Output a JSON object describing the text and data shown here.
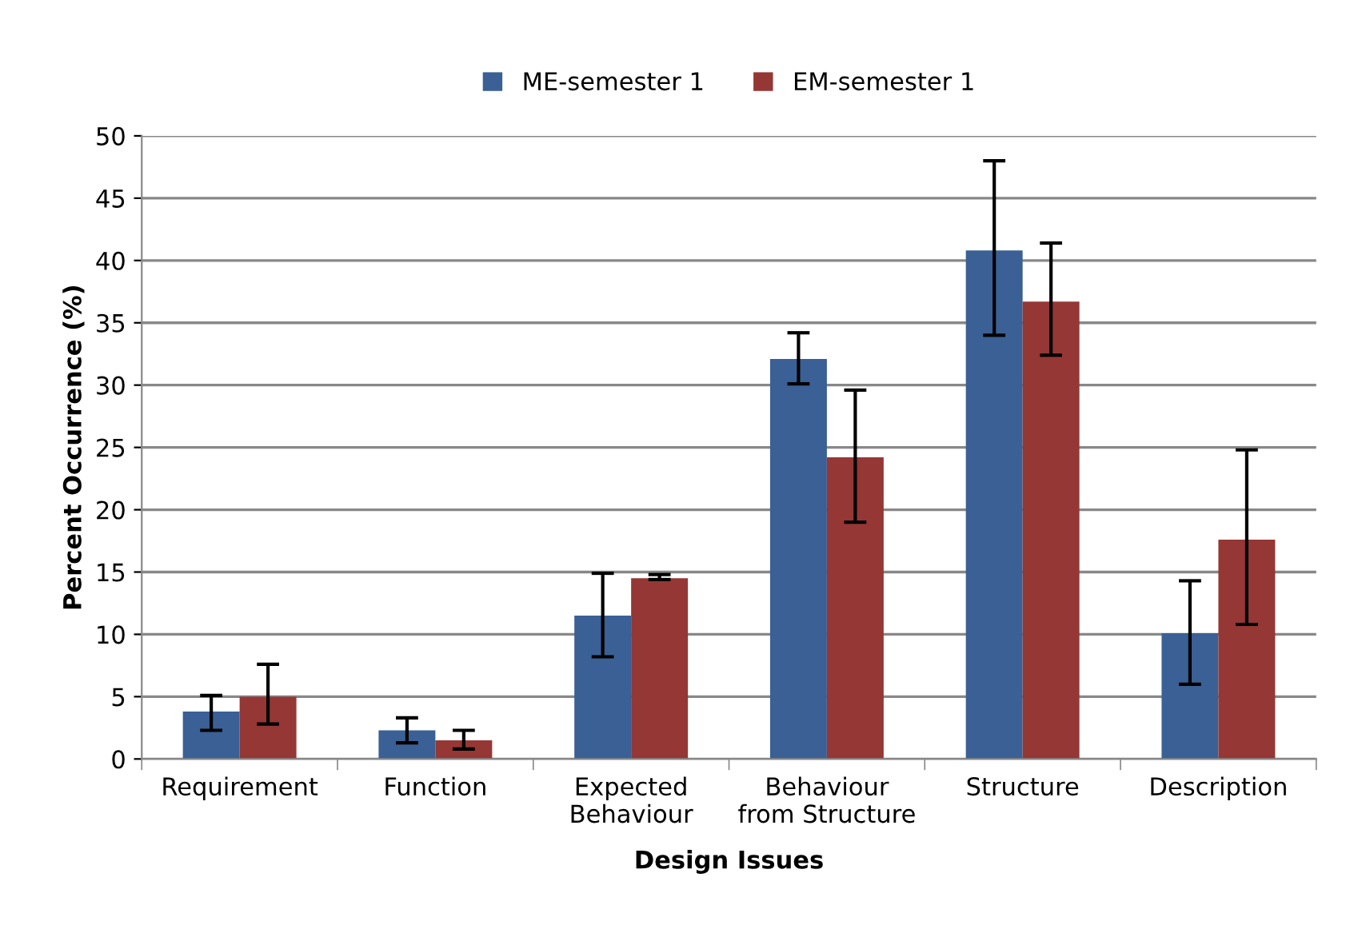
{
  "chart_data": {
    "type": "bar",
    "xlabel": "Design Issues",
    "ylabel": "Percent Occurrence (%)",
    "categories": [
      "Requirement",
      "Function",
      "Expected\nBehaviour",
      "Behaviour\nfrom Structure",
      "Structure",
      "Description"
    ],
    "series": [
      {
        "name": "ME-semester 1",
        "color": "#3a6095",
        "values": [
          3.8,
          2.3,
          11.5,
          32.1,
          40.8,
          10.1
        ],
        "errors": [
          [
            2.3,
            5.1
          ],
          [
            1.3,
            3.3
          ],
          [
            8.2,
            14.9
          ],
          [
            30.1,
            34.2
          ],
          [
            34.0,
            48.0
          ],
          [
            6.0,
            14.3
          ]
        ]
      },
      {
        "name": "EM-semester 1",
        "color": "#953735",
        "values": [
          5.0,
          1.5,
          14.5,
          24.2,
          36.7,
          17.6
        ],
        "errors": [
          [
            2.8,
            7.6
          ],
          [
            0.8,
            2.3
          ],
          [
            14.4,
            14.8
          ],
          [
            19.0,
            29.6
          ],
          [
            32.4,
            41.4
          ],
          [
            10.8,
            24.8
          ]
        ]
      }
    ],
    "ylim": [
      0,
      50
    ],
    "yticks": [
      0,
      5,
      10,
      15,
      20,
      25,
      30,
      35,
      40,
      45,
      50
    ],
    "grid": "y",
    "legend": "top"
  }
}
